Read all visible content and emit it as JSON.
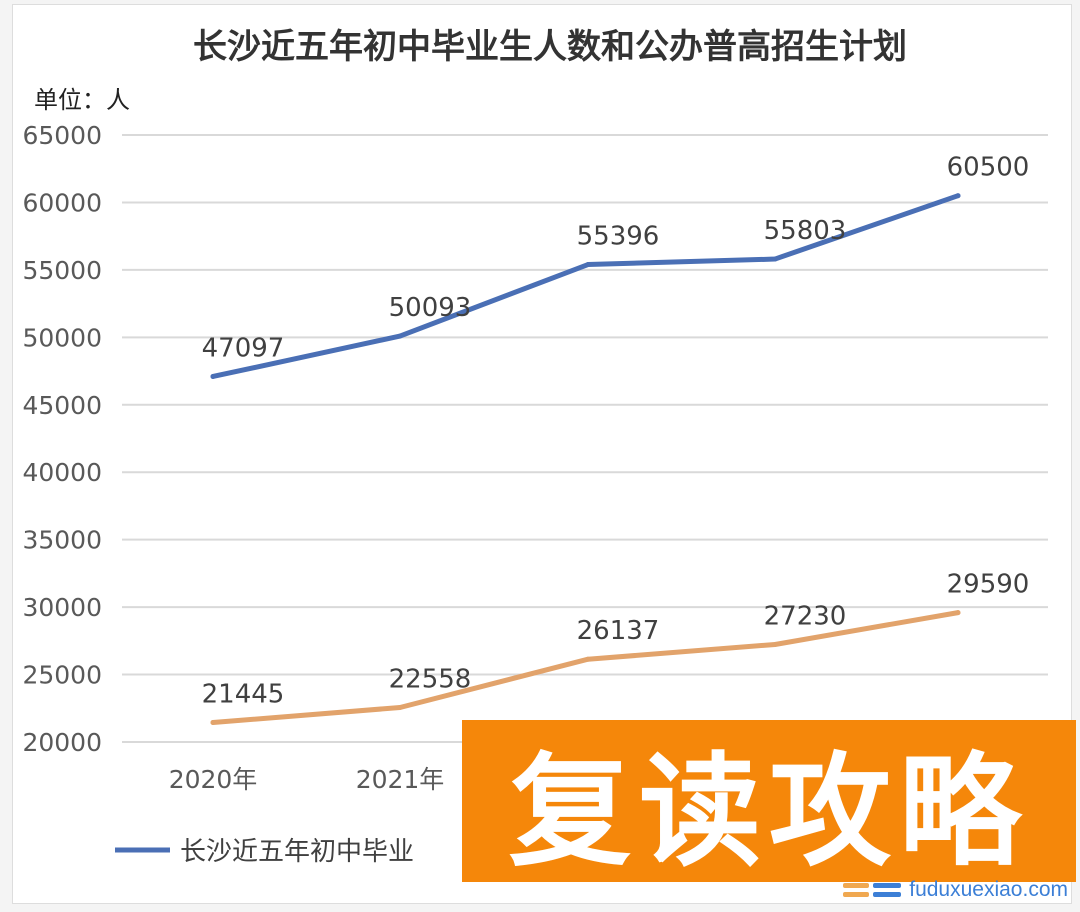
{
  "chart_data": {
    "type": "line",
    "title": "长沙近五年初中毕业生人数和公办普高招生计划",
    "unit_label": "单位：人",
    "categories": [
      "2020年",
      "2021年",
      "",
      "",
      ""
    ],
    "yticks": [
      "20000",
      "25000",
      "30000",
      "35000",
      "40000",
      "45000",
      "50000",
      "55000",
      "60000",
      "65000"
    ],
    "ylim": [
      20000,
      65000
    ],
    "grid": true,
    "legend_text": "长沙近五年初中毕业",
    "legend_placement": "bottom",
    "series": [
      {
        "values": [
          47097,
          50093,
          55396,
          55803,
          60500
        ],
        "color": "#4a6fb5"
      },
      {
        "values": [
          21445,
          22558,
          26137,
          27230,
          29590
        ],
        "color": "#e2a36b"
      }
    ]
  },
  "watermark": {
    "text": "复读攻略",
    "site": "fuduxuexiao.com",
    "color": "#f5870a"
  }
}
